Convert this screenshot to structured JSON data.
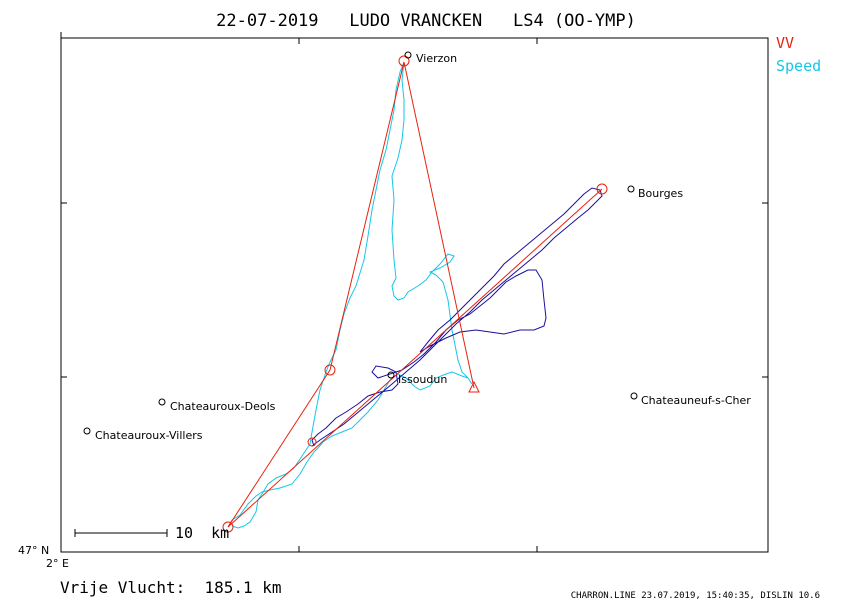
{
  "header": {
    "title": "22-07-2019   LUDO VRANCKEN   LS4 (OO-YMP)"
  },
  "legend": [
    {
      "label": "VV",
      "color": "#e8210f"
    },
    {
      "label": "Speed",
      "color": "#16c7e8"
    }
  ],
  "colors": {
    "task": "#e8210f",
    "track_speed": "#16c7e8",
    "track_vv": "#1a0fa0",
    "frame": "#000000"
  },
  "places": [
    {
      "name": "Vierzon"
    },
    {
      "name": "Bourges"
    },
    {
      "name": "Issoudun"
    },
    {
      "name": "Chateauroux-Deols"
    },
    {
      "name": "Chateauroux-Villers"
    },
    {
      "name": "Chateauneuf-s-Cher"
    }
  ],
  "scale_bar": {
    "label": "10  km"
  },
  "axes": {
    "lat_label": "47° N",
    "lon_label": "2° E"
  },
  "footer": {
    "result": "Vrije Vlucht:  185.1 km",
    "credit": "CHARRON.LINE 23.07.2019, 15:40:35, DISLIN 10.6"
  }
}
